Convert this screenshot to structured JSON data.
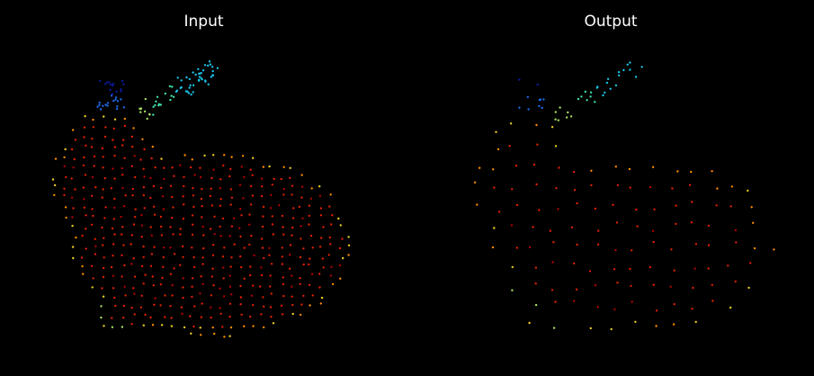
{
  "panels": [
    {
      "id": "input",
      "title": "Input",
      "density": "dense"
    },
    {
      "id": "output",
      "title": "Output",
      "density": "sparse"
    }
  ],
  "colors": {
    "background": "#000000",
    "title": "#ffffff",
    "colormap": [
      "#0a1aa0",
      "#1e6ae6",
      "#19c3e6",
      "#40e0b0",
      "#a8e060",
      "#f0d020",
      "#ff8a00",
      "#e02000",
      "#b00000"
    ]
  }
}
